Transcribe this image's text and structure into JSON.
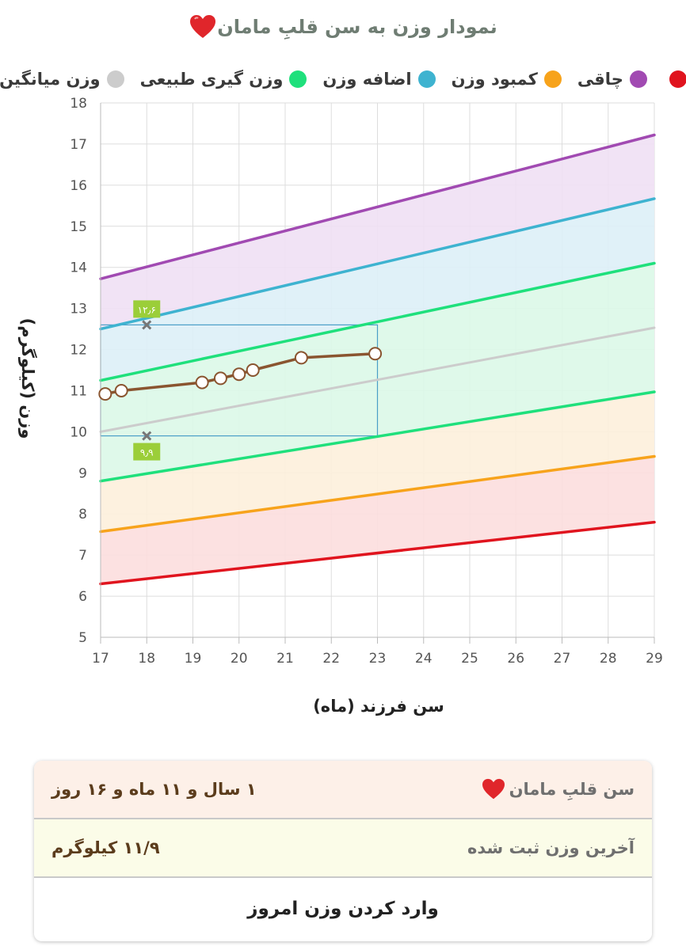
{
  "header": {
    "title": "نمودار وزن به سن قلبِ مامان"
  },
  "colors": {
    "heart": "#e0262b",
    "obese": "#a14ab2",
    "overweight": "#3eb3d0",
    "normal": "#1fe07c",
    "underweight": "#f7a31b",
    "severe": "#e0141e",
    "average": "#cccccc",
    "child_line": "#8a5530",
    "band_obese": "#efe0f4",
    "band_overweight": "#ddf0f7",
    "band_normal": "#dcf8e8",
    "band_underweight": "#fdf0dc",
    "band_severe": "#fcdede",
    "guide_box": "#4a9ec7",
    "marker_tag": "#9bce39"
  },
  "legend": [
    {
      "key": "severe",
      "label": "",
      "icon": "red-dot"
    },
    {
      "key": "obese",
      "label": "چاقی",
      "icon": "purple-dot"
    },
    {
      "key": "underweight",
      "label": "کمبود وزن",
      "icon": "orange-dot"
    },
    {
      "key": "overweight",
      "label": "اضافه وزن",
      "icon": "blue-dot"
    },
    {
      "key": "normal",
      "label": "وزن گیری طبیعی",
      "icon": "green-dot"
    },
    {
      "key": "average",
      "label": "وزن میانگین",
      "icon": "gray-dot"
    }
  ],
  "chart_data": {
    "type": "line",
    "xlabel": "سن فرزند (ماه)",
    "ylabel": "وزن (کیلوگرم)",
    "xlim": [
      17,
      29
    ],
    "ylim": [
      5,
      18
    ],
    "x_ticks": [
      "17",
      "18",
      "19",
      "20",
      "21",
      "22",
      "23",
      "24",
      "25",
      "26",
      "27",
      "28",
      "29"
    ],
    "y_ticks": [
      "5",
      "6",
      "7",
      "8",
      "9",
      "10",
      "11",
      "12",
      "13",
      "14",
      "15",
      "16",
      "17",
      "18"
    ],
    "grid": true,
    "legend_position": "top",
    "series": [
      {
        "key": "obese",
        "x": [
          17,
          29
        ],
        "values": [
          13.72,
          17.22
        ]
      },
      {
        "key": "overweight",
        "x": [
          17,
          29
        ],
        "values": [
          12.5,
          15.67
        ]
      },
      {
        "key": "normal_upper",
        "x": [
          17,
          29
        ],
        "values": [
          11.25,
          14.1
        ]
      },
      {
        "key": "average",
        "x": [
          17,
          29
        ],
        "values": [
          10.0,
          12.53
        ]
      },
      {
        "key": "normal_lower",
        "x": [
          17,
          29
        ],
        "values": [
          8.8,
          10.97
        ]
      },
      {
        "key": "underweight",
        "x": [
          17,
          29
        ],
        "values": [
          7.57,
          9.4
        ]
      },
      {
        "key": "severe",
        "x": [
          17,
          29
        ],
        "values": [
          6.3,
          7.8
        ]
      },
      {
        "key": "child",
        "x": [
          17.1,
          17.45,
          19.2,
          19.6,
          20.0,
          20.3,
          21.35,
          22.95
        ],
        "values": [
          10.92,
          11.0,
          11.2,
          11.3,
          11.4,
          11.5,
          11.8,
          11.9
        ]
      }
    ],
    "markers": [
      {
        "x": 18,
        "y": 12.6,
        "label": "۱۲٫۶"
      },
      {
        "x": 18,
        "y": 9.9,
        "label": "۹٫۹"
      }
    ],
    "guide_box": {
      "x": [
        17,
        23
      ],
      "y": [
        9.9,
        12.6
      ]
    }
  },
  "info_card": {
    "age_label": "سن قلبِ مامان",
    "age_value": "۱ سال و ۱۱ ماه و ۱۶ روز",
    "weight_label": "آخرین وزن ثبت شده",
    "weight_value": "۱۱/۹ کیلوگرم",
    "action_label": "وارد کردن وزن امروز"
  }
}
